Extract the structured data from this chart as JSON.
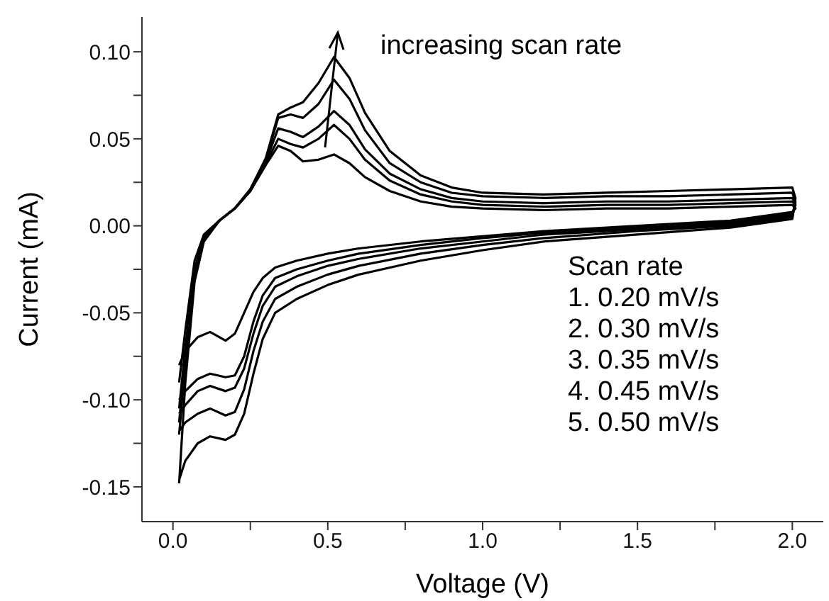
{
  "chart_data": {
    "type": "line",
    "xlabel": "Voltage (V)",
    "ylabel": "Current (mA)",
    "xlim": [
      -0.1,
      2.1
    ],
    "ylim": [
      -0.17,
      0.12
    ],
    "xticks": [
      {
        "value": 0,
        "label": "0.0"
      },
      {
        "value": 0.25,
        "label": null
      },
      {
        "value": 0.5,
        "label": "0.5"
      },
      {
        "value": 0.75,
        "label": null
      },
      {
        "value": 1,
        "label": "1.0"
      },
      {
        "value": 1.25,
        "label": null
      },
      {
        "value": 1.5,
        "label": "1.5"
      },
      {
        "value": 1.75,
        "label": null
      },
      {
        "value": 2,
        "label": "2.0"
      }
    ],
    "yticks": [
      {
        "value": -0.15,
        "label": "-0.15"
      },
      {
        "value": -0.125,
        "label": null
      },
      {
        "value": -0.1,
        "label": "-0.10"
      },
      {
        "value": -0.075,
        "label": null
      },
      {
        "value": -0.05,
        "label": "-0.05"
      },
      {
        "value": -0.025,
        "label": null
      },
      {
        "value": 0,
        "label": "0.00"
      },
      {
        "value": 0.025,
        "label": null
      },
      {
        "value": 0.05,
        "label": "0.05"
      },
      {
        "value": 0.075,
        "label": null
      },
      {
        "value": 0.1,
        "label": "0.10"
      }
    ],
    "marker": "none",
    "line_style": "solid",
    "annotations": [
      "increasing scan rate",
      "Scan rate",
      "1. 0.20 mV/s",
      "2. 0.30 mV/s",
      "3. 0.35 mV/s",
      "4. 0.45 mV/s",
      "5. 0.50 mV/s"
    ],
    "series": [
      {
        "color": "#000000",
        "x": [
          0.02,
          0.04,
          0.07,
          0.1,
          0.15,
          0.2,
          0.25,
          0.3,
          0.34,
          0.38,
          0.42,
          0.47,
          0.52,
          0.57,
          0.62,
          0.7,
          0.8,
          0.9,
          1.0,
          1.2,
          1.4,
          1.6,
          1.8,
          2.0,
          2.01,
          2.0,
          1.8,
          1.5,
          1.2,
          1.0,
          0.8,
          0.6,
          0.5,
          0.4,
          0.33,
          0.29,
          0.26,
          0.23,
          0.2,
          0.17,
          0.12,
          0.08,
          0.04,
          0.02
        ],
        "values": [
          -0.09,
          -0.06,
          -0.02,
          -0.005,
          0.003,
          0.01,
          0.02,
          0.035,
          0.046,
          0.043,
          0.037,
          0.038,
          0.041,
          0.036,
          0.028,
          0.02,
          0.014,
          0.011,
          0.01,
          0.009,
          0.01,
          0.01,
          0.011,
          0.012,
          0.01,
          0.008,
          0.003,
          0,
          -0.003,
          -0.006,
          -0.009,
          -0.013,
          -0.016,
          -0.02,
          -0.024,
          -0.03,
          -0.038,
          -0.05,
          -0.062,
          -0.066,
          -0.061,
          -0.064,
          -0.072,
          -0.08
        ]
      },
      {
        "color": "#000000",
        "x": [
          0.02,
          0.04,
          0.07,
          0.1,
          0.15,
          0.2,
          0.25,
          0.3,
          0.34,
          0.38,
          0.42,
          0.47,
          0.52,
          0.57,
          0.62,
          0.7,
          0.8,
          0.9,
          1.0,
          1.2,
          1.4,
          1.6,
          1.8,
          2.0,
          2.01,
          2.0,
          1.8,
          1.5,
          1.2,
          1.0,
          0.8,
          0.6,
          0.5,
          0.4,
          0.33,
          0.29,
          0.26,
          0.23,
          0.2,
          0.17,
          0.12,
          0.08,
          0.04,
          0.02
        ],
        "values": [
          -0.105,
          -0.07,
          -0.025,
          -0.006,
          0.003,
          0.01,
          0.02,
          0.036,
          0.05,
          0.047,
          0.045,
          0.05,
          0.058,
          0.05,
          0.038,
          0.026,
          0.018,
          0.014,
          0.012,
          0.011,
          0.012,
          0.012,
          0.013,
          0.014,
          0.012,
          0.007,
          0.002,
          -0.001,
          -0.004,
          -0.007,
          -0.011,
          -0.016,
          -0.02,
          -0.025,
          -0.03,
          -0.04,
          -0.055,
          -0.075,
          -0.086,
          -0.087,
          -0.085,
          -0.088,
          -0.095,
          -0.1
        ]
      },
      {
        "color": "#000000",
        "x": [
          0.02,
          0.04,
          0.07,
          0.1,
          0.15,
          0.2,
          0.25,
          0.3,
          0.34,
          0.38,
          0.42,
          0.47,
          0.52,
          0.57,
          0.62,
          0.7,
          0.8,
          0.9,
          1.0,
          1.2,
          1.4,
          1.6,
          1.8,
          2.0,
          2.01,
          2.0,
          1.8,
          1.5,
          1.2,
          1.0,
          0.8,
          0.6,
          0.5,
          0.4,
          0.33,
          0.29,
          0.26,
          0.23,
          0.2,
          0.17,
          0.12,
          0.08,
          0.04,
          0.02
        ],
        "values": [
          -0.113,
          -0.075,
          -0.028,
          -0.007,
          0.003,
          0.01,
          0.02,
          0.037,
          0.056,
          0.054,
          0.051,
          0.057,
          0.066,
          0.058,
          0.044,
          0.03,
          0.021,
          0.016,
          0.014,
          0.013,
          0.014,
          0.014,
          0.015,
          0.016,
          0.013,
          0.006,
          0.001,
          -0.002,
          -0.005,
          -0.009,
          -0.013,
          -0.019,
          -0.023,
          -0.029,
          -0.035,
          -0.046,
          -0.062,
          -0.082,
          -0.093,
          -0.095,
          -0.092,
          -0.095,
          -0.103,
          -0.108
        ]
      },
      {
        "color": "#000000",
        "x": [
          0.02,
          0.04,
          0.07,
          0.1,
          0.15,
          0.2,
          0.25,
          0.3,
          0.34,
          0.38,
          0.42,
          0.47,
          0.52,
          0.57,
          0.62,
          0.7,
          0.8,
          0.9,
          1.0,
          1.2,
          1.4,
          1.6,
          1.8,
          2.0,
          2.01,
          2.0,
          1.8,
          1.5,
          1.2,
          1.0,
          0.8,
          0.6,
          0.5,
          0.4,
          0.33,
          0.29,
          0.26,
          0.23,
          0.2,
          0.17,
          0.12,
          0.08,
          0.04,
          0.02
        ],
        "values": [
          -0.12,
          -0.08,
          -0.03,
          -0.008,
          0.003,
          0.01,
          0.021,
          0.038,
          0.062,
          0.064,
          0.062,
          0.07,
          0.084,
          0.073,
          0.055,
          0.036,
          0.025,
          0.019,
          0.017,
          0.016,
          0.017,
          0.017,
          0.018,
          0.019,
          0.014,
          0.005,
          0,
          -0.003,
          -0.007,
          -0.011,
          -0.016,
          -0.023,
          -0.028,
          -0.035,
          -0.042,
          -0.055,
          -0.072,
          -0.094,
          -0.107,
          -0.109,
          -0.105,
          -0.108,
          -0.113,
          -0.118
        ]
      },
      {
        "color": "#000000",
        "x": [
          0.02,
          0.04,
          0.07,
          0.1,
          0.15,
          0.2,
          0.25,
          0.3,
          0.34,
          0.38,
          0.42,
          0.47,
          0.52,
          0.57,
          0.62,
          0.7,
          0.8,
          0.9,
          1.0,
          1.2,
          1.4,
          1.6,
          1.8,
          2.0,
          2.01,
          2.0,
          1.8,
          1.5,
          1.2,
          1.0,
          0.8,
          0.6,
          0.5,
          0.4,
          0.33,
          0.29,
          0.26,
          0.23,
          0.2,
          0.17,
          0.12,
          0.08,
          0.04,
          0.02
        ],
        "values": [
          -0.148,
          -0.09,
          -0.032,
          -0.009,
          0.003,
          0.01,
          0.021,
          0.039,
          0.064,
          0.068,
          0.071,
          0.082,
          0.097,
          0.085,
          0.065,
          0.043,
          0.029,
          0.022,
          0.019,
          0.018,
          0.019,
          0.02,
          0.021,
          0.022,
          0.016,
          0.004,
          -0.001,
          -0.005,
          -0.009,
          -0.014,
          -0.02,
          -0.028,
          -0.034,
          -0.042,
          -0.05,
          -0.065,
          -0.085,
          -0.108,
          -0.12,
          -0.123,
          -0.121,
          -0.125,
          -0.135,
          -0.146
        ]
      }
    ]
  }
}
